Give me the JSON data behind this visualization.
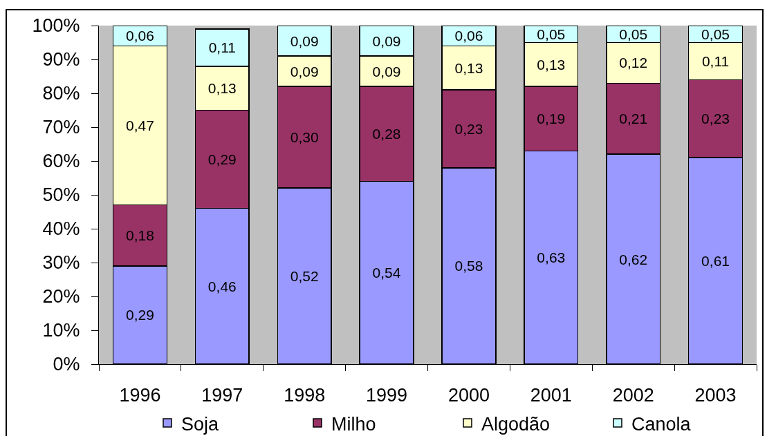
{
  "chart_data": {
    "type": "bar",
    "stacked": true,
    "categories": [
      "1996",
      "1997",
      "1998",
      "1999",
      "2000",
      "2001",
      "2002",
      "2003"
    ],
    "series": [
      {
        "name": "Soja",
        "color": "#9999ff",
        "values": [
          0.29,
          0.46,
          0.52,
          0.54,
          0.58,
          0.63,
          0.62,
          0.61
        ],
        "value_labels": [
          "0,29",
          "0,46",
          "0,52",
          "0,54",
          "0,58",
          "0,63",
          "0,62",
          "0,61"
        ]
      },
      {
        "name": "Milho",
        "color": "#993366",
        "values": [
          0.18,
          0.29,
          0.3,
          0.28,
          0.23,
          0.19,
          0.21,
          0.23
        ],
        "value_labels": [
          "0,18",
          "0,29",
          "0,30",
          "0,28",
          "0,23",
          "0,19",
          "0,21",
          "0,23"
        ]
      },
      {
        "name": "Algodão",
        "color": "#ffffcc",
        "values": [
          0.47,
          0.13,
          0.09,
          0.09,
          0.13,
          0.13,
          0.12,
          0.11
        ],
        "value_labels": [
          "0,47",
          "0,13",
          "0,09",
          "0,09",
          "0,13",
          "0,13",
          "0,12",
          "0,11"
        ]
      },
      {
        "name": "Canola",
        "color": "#ccffff",
        "values": [
          0.06,
          0.11,
          0.09,
          0.09,
          0.06,
          0.05,
          0.05,
          0.05
        ],
        "value_labels": [
          "0,06",
          "0,11",
          "0,09",
          "0,09",
          "0,06",
          "0,05",
          "0,05",
          "0,05"
        ]
      }
    ],
    "ylim": [
      0,
      1
    ],
    "yticks": [
      {
        "value": 0,
        "label": "0%"
      },
      {
        "value": 0.1,
        "label": "10%"
      },
      {
        "value": 0.2,
        "label": "20%"
      },
      {
        "value": 0.3,
        "label": "30%"
      },
      {
        "value": 0.4,
        "label": "40%"
      },
      {
        "value": 0.5,
        "label": "50%"
      },
      {
        "value": 0.6,
        "label": "60%"
      },
      {
        "value": 0.7,
        "label": "70%"
      },
      {
        "value": 0.8,
        "label": "80%"
      },
      {
        "value": 0.9,
        "label": "90%"
      },
      {
        "value": 1,
        "label": "100%"
      }
    ],
    "grid": false,
    "legend": "bottom"
  }
}
